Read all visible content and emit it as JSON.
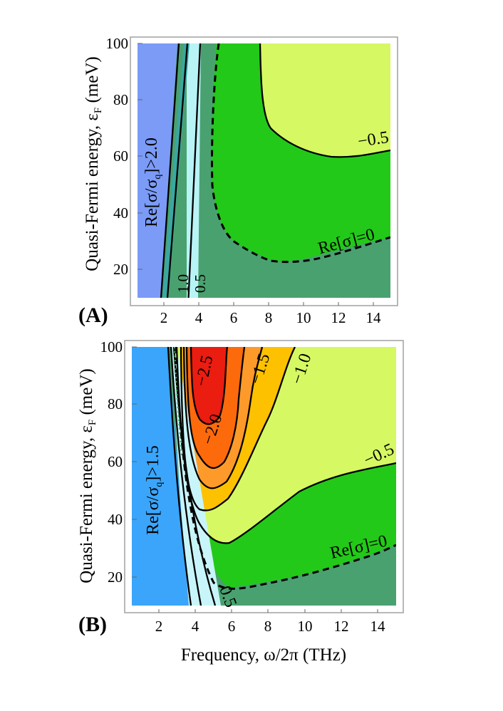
{
  "chart_data": [
    {
      "type": "contour",
      "panel_label": "(A)",
      "xlabel": "",
      "ylabel": "Quasi-Fermi energy, ε_F (meV)",
      "ylabel_main": "Quasi-Fermi energy, ε",
      "ylabel_sub": "F",
      "ylabel_unit": " (meV)",
      "xlim": [
        0.5,
        15
      ],
      "ylim": [
        10,
        100
      ],
      "xticks": [
        2,
        4,
        6,
        8,
        10,
        12,
        14
      ],
      "yticks": [
        20,
        40,
        60,
        80,
        100
      ],
      "region_labels": {
        "high": "Re[σ/σ_q]>2.0",
        "high_main": "Re[σ/σ",
        "high_sub": "q",
        "high_tail": "]>2.0",
        "c1": "1.0",
        "c05": "0.5",
        "zero": "Re[σ]=0",
        "neg05": "−0.5"
      },
      "contours": [
        {
          "level": "2.0",
          "points": [
            [
              2.55,
              10
            ],
            [
              3.6,
              100
            ]
          ]
        },
        {
          "level": "1.0",
          "points": [
            [
              2.85,
              10
            ],
            [
              3.95,
              100
            ]
          ]
        },
        {
          "level": "0.5",
          "points": [
            [
              3.5,
              10
            ],
            [
              4.3,
              100
            ]
          ]
        },
        {
          "level": "0",
          "style": "dashed",
          "points": [
            [
              5.1,
              100
            ],
            [
              4.9,
              80
            ],
            [
              4.9,
              50
            ],
            [
              5.5,
              35
            ],
            [
              7.0,
              26
            ],
            [
              9.0,
              23
            ],
            [
              11.0,
              24
            ],
            [
              13.0,
              27.5
            ],
            [
              15.0,
              32
            ]
          ]
        },
        {
          "level": "-0.5",
          "points": [
            [
              7.65,
              100
            ],
            [
              7.9,
              85
            ],
            [
              9.0,
              72
            ],
            [
              10.8,
              61
            ],
            [
              12.5,
              60
            ],
            [
              15.0,
              63
            ]
          ]
        }
      ],
      "colors": [
        "#7b9bf7",
        "#3aa7a2",
        "#b8f3f6",
        "#4aa170",
        "#23c918",
        "#d6f862"
      ]
    },
    {
      "type": "contour",
      "panel_label": "(B)",
      "xlabel": "Frequency, ω/2π (THz)",
      "ylabel": "Quasi-Fermi energy, ε_F (meV)",
      "ylabel_main": "Quasi-Fermi energy, ε",
      "ylabel_sub": "F",
      "ylabel_unit": " (meV)",
      "xlim": [
        0.5,
        15
      ],
      "ylim": [
        10,
        100
      ],
      "xticks": [
        2,
        4,
        6,
        8,
        10,
        12,
        14
      ],
      "yticks": [
        20,
        40,
        60,
        80,
        100
      ],
      "region_labels": {
        "high": "Re[σ/σ_q]>1.5",
        "high_main": "Re[σ/σ",
        "high_sub": "q",
        "high_tail": "]>1.5",
        "c05": "0.5",
        "zero": "Re[σ]=0",
        "neg05": "−0.5",
        "neg10": "−1.0",
        "neg15": "−1.5",
        "neg20": "−2.0",
        "neg25": "−2.5"
      },
      "contours": [
        {
          "level": "1.5",
          "points": [
            [
              2.6,
              100
            ],
            [
              3.4,
              10
            ]
          ]
        },
        {
          "level": "1.0",
          "points": [
            [
              2.8,
              100
            ],
            [
              3.8,
              10
            ]
          ]
        },
        {
          "level": "0.5",
          "points": [
            [
              3.0,
              100
            ],
            [
              4.3,
              10
            ]
          ]
        },
        {
          "level": "0",
          "style": "dashed",
          "points": [
            [
              3.2,
              100
            ],
            [
              3.7,
              40
            ],
            [
              4.3,
              22
            ],
            [
              5.5,
              17
            ],
            [
              8.0,
              18.5
            ],
            [
              11.0,
              22
            ],
            [
              13.0,
              26
            ],
            [
              15.0,
              32
            ]
          ]
        },
        {
          "level": "-0.5",
          "points": [
            [
              3.3,
              100
            ],
            [
              3.6,
              45
            ],
            [
              4.3,
              32
            ],
            [
              5.3,
              26
            ],
            [
              6.5,
              30
            ],
            [
              8.5,
              39
            ],
            [
              11.0,
              48
            ],
            [
              13.0,
              55
            ],
            [
              15.0,
              60
            ]
          ]
        },
        {
          "level": "-1.0",
          "points": [
            [
              3.4,
              100
            ],
            [
              3.55,
              60
            ],
            [
              4.2,
              41
            ],
            [
              5.3,
              38
            ],
            [
              7.0,
              55
            ],
            [
              8.5,
              80
            ],
            [
              9.3,
              100
            ]
          ]
        },
        {
          "level": "-1.5",
          "points": [
            [
              3.55,
              100
            ],
            [
              3.6,
              65
            ],
            [
              4.3,
              51
            ],
            [
              5.3,
              49
            ],
            [
              6.5,
              64
            ],
            [
              7.2,
              82
            ],
            [
              7.6,
              100
            ]
          ]
        },
        {
          "level": "-2.0",
          "points": [
            [
              3.7,
              100
            ],
            [
              3.75,
              70
            ],
            [
              4.4,
              58
            ],
            [
              5.2,
              58
            ],
            [
              5.9,
              72
            ],
            [
              6.2,
              90
            ],
            [
              6.3,
              100
            ]
          ]
        },
        {
          "level": "-2.5",
          "points": [
            [
              3.9,
              100
            ],
            [
              3.95,
              82
            ],
            [
              4.4,
              74
            ],
            [
              5.0,
              76
            ],
            [
              5.2,
              90
            ],
            [
              5.3,
              100
            ]
          ]
        }
      ],
      "colors": [
        "#3aa5fb",
        "#c8f5fa",
        "#4aa170",
        "#23c918",
        "#d6f862",
        "#fdc100",
        "#fd9a2a",
        "#fd6a0c",
        "#eb1c10"
      ]
    }
  ]
}
